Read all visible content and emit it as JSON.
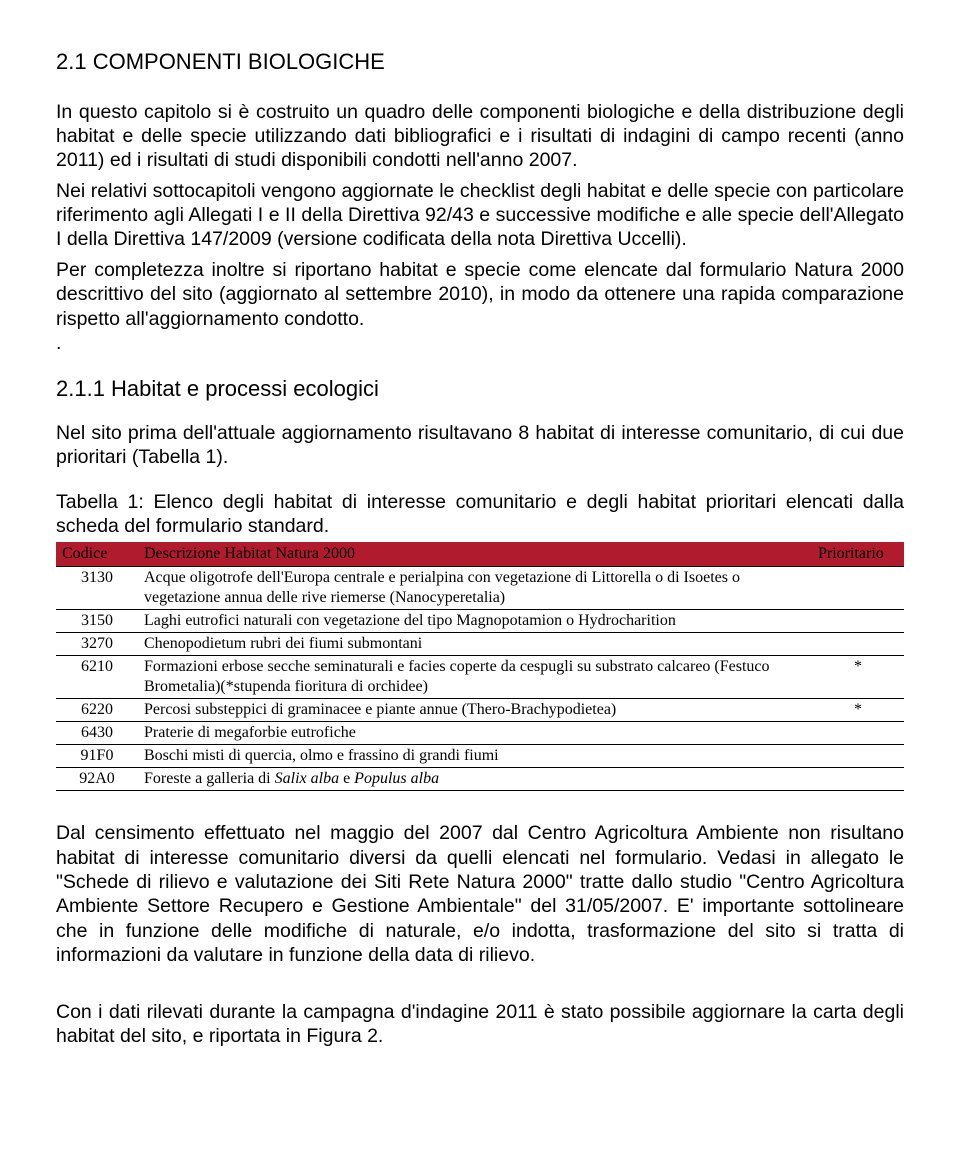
{
  "section": {
    "title": "2.1  COMPONENTI BIOLOGICHE",
    "paragraphs": {
      "p1": "In questo capitolo si è costruito un quadro delle componenti  biologiche e della distribuzione degli habitat e delle specie utilizzando dati bibliografici e i risultati di indagini di campo recenti (anno 2011) ed i risultati di studi disponibili condotti nell'anno 2007.",
      "p2": "Nei relativi sottocapitoli vengono aggiornate le checklist degli habitat e delle specie con particolare riferimento agli Allegati I e II della Direttiva 92/43 e successive modifiche e alle specie dell'Allegato I della Direttiva 147/2009 (versione codificata della nota Direttiva Uccelli).",
      "p3": "Per completezza inoltre si riportano habitat e specie come elencate dal formulario Natura 2000 descrittivo del sito (aggiornato al settembre 2010), in modo da ottenere una rapida comparazione rispetto all'aggiornamento condotto.",
      "dot": "."
    },
    "subsection_title": "2.1.1  Habitat e processi ecologici",
    "subsection_intro": "Nel sito prima dell'attuale aggiornamento risultavano 8 habitat di interesse comunitario, di cui due prioritari (Tabella 1).",
    "table_intro_prefix": "Tabella ",
    "table_intro_num": "1",
    "table_intro_rest": ": Elenco degli habitat di interesse comunitario e degli habitat prioritari elencati dalla scheda del formulario standard."
  },
  "table": {
    "header_bg": "#b01c2e",
    "columns": {
      "code": "Codice",
      "desc": "Descrizione Habitat Natura 2000",
      "prio": "Prioritario"
    },
    "rows": [
      {
        "code": "3130",
        "desc": "Acque oligotrofe dell'Europa centrale e perialpina con vegetazione di Littorella o di Isoetes o vegetazione annua delle rive riemerse (Nanocyperetalia)",
        "prio": ""
      },
      {
        "code": "3150",
        "desc": "Laghi eutrofici naturali con vegetazione del tipo Magnopotamion o Hydrocharition",
        "prio": ""
      },
      {
        "code": "3270",
        "desc": "Chenopodietum rubri dei fiumi submontani",
        "prio": ""
      },
      {
        "code": "6210",
        "desc": "Formazioni erbose secche seminaturali e facies coperte da cespugli su substrato calcareo (Festuco Brometalia)(*stupenda fioritura di orchidee)",
        "prio": "*"
      },
      {
        "code": "6220",
        "desc": "Percosi substeppici di graminacee e piante annue (Thero-Brachypodietea)",
        "prio": "*"
      },
      {
        "code": "6430",
        "desc": "Praterie di megaforbie eutrofiche",
        "prio": ""
      },
      {
        "code": "91F0",
        "desc": "Boschi misti di quercia, olmo e frassino di grandi fiumi",
        "prio": ""
      },
      {
        "code": "92A0",
        "desc_prefix": "Foreste a galleria di ",
        "desc_italic": "Salix alba",
        "desc_mid": " e ",
        "desc_italic2": "Populus alba",
        "prio": ""
      }
    ]
  },
  "after": {
    "p1": "Dal censimento effettuato nel maggio del 2007 dal Centro Agricoltura Ambiente non risultano habitat di interesse comunitario diversi da quelli elencati nel formulario. Vedasi in allegato le \"Schede di rilievo e valutazione dei Siti Rete Natura 2000\" tratte dallo studio \"Centro Agricoltura Ambiente Settore Recupero e Gestione Ambientale\" del 31/05/2007. E' importante sottolineare che in funzione delle modifiche di naturale, e/o indotta, trasformazione del sito si tratta di informazioni da valutare in funzione della data di rilievo.",
    "p2": "Con i dati rilevati durante la campagna d'indagine 2011 è stato possibile aggiornare la carta degli habitat del sito, e riportata in Figura 2."
  }
}
